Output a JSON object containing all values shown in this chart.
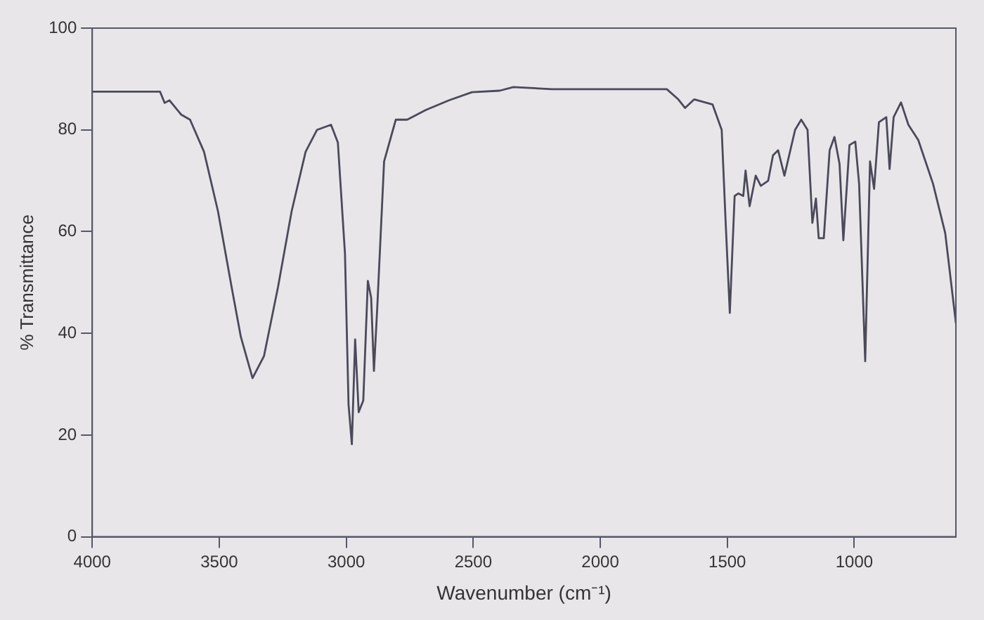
{
  "chart_data": {
    "type": "line",
    "xlabel": "Wavenumber (cm⁻¹)",
    "ylabel": "% Transmittance",
    "xlim": [
      4000,
      600
    ],
    "xticks": [
      4000,
      3500,
      3000,
      2500,
      2000,
      1500,
      1000
    ],
    "ylim": [
      0,
      100
    ],
    "yticks": [
      0,
      20,
      40,
      60,
      80,
      100
    ],
    "grid": false,
    "legend": false,
    "marker": "none",
    "line_style": "solid",
    "series": [
      {
        "color": "#4a4a5a",
        "x": [
          4000,
          3733,
          3715,
          3696,
          3650,
          3615,
          3560,
          3505,
          3451,
          3415,
          3369,
          3324,
          3269,
          3215,
          3160,
          3115,
          3060,
          3033,
          3005,
          2991,
          2978,
          2965,
          2951,
          2933,
          2915,
          2902,
          2891,
          2878,
          2851,
          2805,
          2760,
          2687,
          2596,
          2505,
          2396,
          2342,
          2190,
          2054,
          1937,
          1829,
          1738,
          1693,
          1666,
          1630,
          1558,
          1522,
          1507,
          1490,
          1471,
          1456,
          1437,
          1428,
          1412,
          1388,
          1368,
          1339,
          1320,
          1300,
          1275,
          1233,
          1209,
          1184,
          1165,
          1151,
          1140,
          1120,
          1097,
          1078,
          1058,
          1043,
          1019,
          996,
          981,
          957,
          938,
          922,
          903,
          874,
          861,
          845,
          816,
          787,
          748,
          690,
          642,
          600
        ],
        "values": [
          87.5,
          87.5,
          85.3,
          85.8,
          83,
          82,
          75.7,
          64,
          49,
          39.3,
          31.2,
          35.5,
          49,
          64,
          75.7,
          80,
          81,
          77.5,
          55.6,
          26,
          18.2,
          38.8,
          24.5,
          26.8,
          50.3,
          47,
          32.6,
          45,
          73.8,
          82,
          82,
          83.9,
          85.8,
          87.4,
          87.7,
          88.4,
          88,
          88,
          88,
          88,
          88,
          86,
          84.3,
          86,
          85,
          80,
          62.5,
          44,
          67,
          67.5,
          67,
          72,
          65,
          71,
          69,
          70,
          75,
          76,
          71,
          80,
          82,
          80,
          61.7,
          66.5,
          58.7,
          58.7,
          76,
          78.6,
          73.3,
          58.3,
          77,
          77.7,
          69.4,
          34.5,
          73.8,
          68.4,
          81.5,
          82.5,
          72.3,
          82.5,
          85.4,
          81,
          78,
          69.4,
          59.7,
          42
        ]
      }
    ]
  }
}
